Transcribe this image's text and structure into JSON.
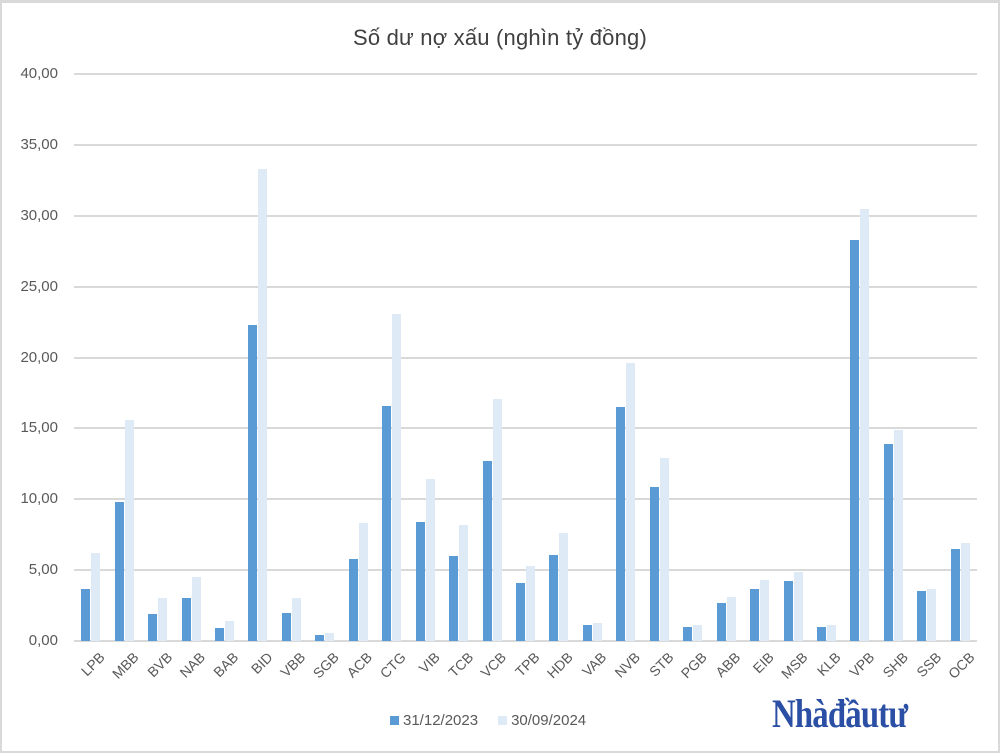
{
  "chart_data": {
    "type": "bar",
    "title": "Số dư nợ xấu (nghìn tỷ đồng)",
    "xlabel": "",
    "ylabel": "",
    "ylim": [
      0,
      40
    ],
    "yticks": [
      "0,00",
      "5,00",
      "10,00",
      "15,00",
      "20,00",
      "25,00",
      "30,00",
      "35,00",
      "40,00"
    ],
    "grid": true,
    "legend_position": "bottom",
    "categories": [
      "LPB",
      "MBB",
      "BVB",
      "NAB",
      "BAB",
      "BID",
      "VBB",
      "SGB",
      "ACB",
      "CTG",
      "VIB",
      "TCB",
      "VCB",
      "TPB",
      "HDB",
      "VAB",
      "NVB",
      "STB",
      "PGB",
      "ABB",
      "EIB",
      "MSB",
      "KLB",
      "VPB",
      "SHB",
      "SSB",
      "OCB"
    ],
    "series": [
      {
        "name": "31/12/2023",
        "color": "#5b9bd5",
        "values": [
          3.7,
          9.8,
          1.9,
          3.0,
          0.9,
          22.3,
          2.0,
          0.4,
          5.8,
          16.6,
          8.4,
          6.0,
          12.7,
          4.1,
          6.1,
          1.1,
          16.5,
          10.9,
          1.0,
          2.7,
          3.7,
          4.2,
          1.0,
          28.3,
          13.9,
          3.5,
          6.5
        ]
      },
      {
        "name": "30/09/2024",
        "color": "#deebf7",
        "values": [
          6.2,
          15.6,
          3.0,
          4.5,
          1.4,
          33.3,
          3.0,
          0.6,
          8.3,
          23.1,
          11.4,
          8.2,
          17.1,
          5.3,
          7.6,
          1.3,
          19.6,
          12.9,
          1.1,
          3.1,
          4.3,
          4.9,
          1.1,
          30.5,
          14.9,
          3.7,
          6.9
        ]
      }
    ]
  },
  "legend": {
    "s1": "31/12/2023",
    "s2": "30/09/2024"
  },
  "watermark": "Nhàđầutư"
}
